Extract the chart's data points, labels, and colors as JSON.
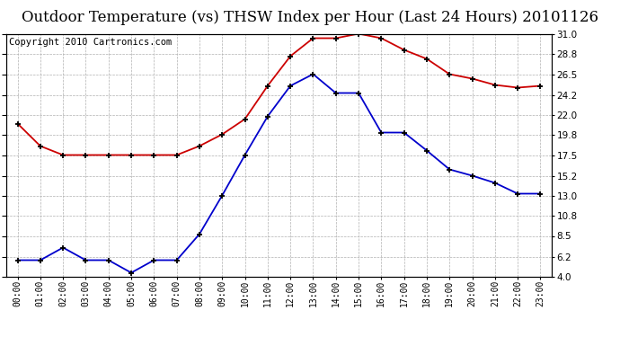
{
  "title": "Outdoor Temperature (vs) THSW Index per Hour (Last 24 Hours) 20101126",
  "copyright": "Copyright 2010 Cartronics.com",
  "hours": [
    "00:00",
    "01:00",
    "02:00",
    "03:00",
    "04:00",
    "05:00",
    "06:00",
    "07:00",
    "08:00",
    "09:00",
    "10:00",
    "11:00",
    "12:00",
    "13:00",
    "14:00",
    "15:00",
    "16:00",
    "17:00",
    "18:00",
    "19:00",
    "20:00",
    "21:00",
    "22:00",
    "23:00"
  ],
  "temp_blue": [
    5.8,
    5.8,
    7.2,
    5.8,
    5.8,
    4.4,
    5.8,
    5.8,
    8.7,
    13.0,
    17.5,
    21.8,
    25.2,
    26.5,
    24.4,
    24.4,
    20.0,
    20.0,
    18.0,
    15.9,
    15.2,
    14.4,
    13.2,
    13.2
  ],
  "thsw_red": [
    21.0,
    18.5,
    17.5,
    17.5,
    17.5,
    17.5,
    17.5,
    17.5,
    18.5,
    19.8,
    21.5,
    25.2,
    28.5,
    30.5,
    30.5,
    31.0,
    30.5,
    29.2,
    28.2,
    26.5,
    26.0,
    25.3,
    25.0,
    25.2
  ],
  "y_ticks": [
    4.0,
    6.2,
    8.5,
    10.8,
    13.0,
    15.2,
    17.5,
    19.8,
    22.0,
    24.2,
    26.5,
    28.8,
    31.0
  ],
  "y_min": 4.0,
  "y_max": 31.0,
  "bg_color": "#ffffff",
  "grid_color": "#b0b0b0",
  "blue_color": "#0000cc",
  "red_color": "#cc0000",
  "title_fontsize": 12,
  "copyright_fontsize": 7.5
}
